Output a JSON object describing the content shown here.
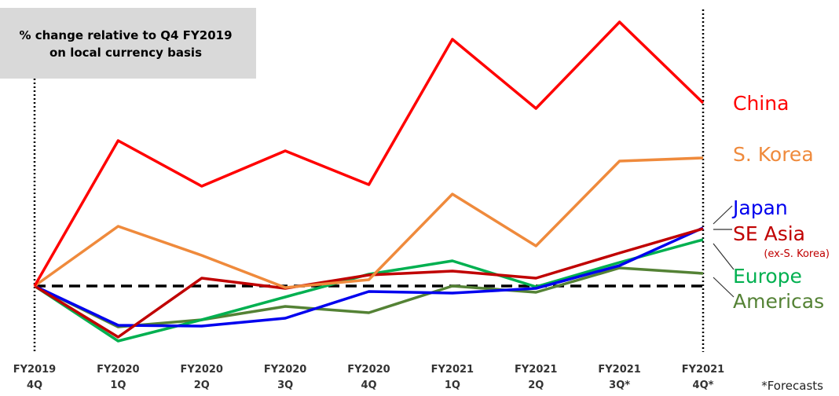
{
  "chart_data": {
    "type": "line",
    "annotation": [
      "% change relative to Q4 FY2019",
      "on local currency basis"
    ],
    "footnote": "*Forecasts",
    "categories": [
      [
        "FY2019",
        "4Q"
      ],
      [
        "FY2020",
        "1Q"
      ],
      [
        "FY2020",
        "2Q"
      ],
      [
        "FY2020",
        "3Q"
      ],
      [
        "FY2020",
        "4Q"
      ],
      [
        "FY2021",
        "1Q"
      ],
      [
        "FY2021",
        "2Q"
      ],
      [
        "FY2021",
        "3Q*"
      ],
      [
        "FY2021",
        "4Q*"
      ]
    ],
    "ylim": [
      -8.6,
      34.4
    ],
    "baseline": 0,
    "series": [
      {
        "name": "China",
        "color": "#ff0000",
        "values": [
          0,
          18.5,
          12.7,
          17.2,
          12.9,
          31.4,
          22.6,
          33.6,
          23.3
        ]
      },
      {
        "name": "S. Korea",
        "color": "#ef8a3c",
        "values": [
          0,
          7.6,
          3.9,
          -0.2,
          0.8,
          11.7,
          5.1,
          15.9,
          16.3
        ]
      },
      {
        "name": "Japan",
        "color": "#0000ee",
        "values": [
          0,
          -5.0,
          -5.1,
          -4.1,
          -0.7,
          -0.9,
          -0.3,
          2.6,
          7.4
        ]
      },
      {
        "name": "SE Asia",
        "sublabel": "(ex-S. Korea)",
        "color": "#c00000",
        "values": [
          0,
          -6.5,
          1.0,
          -0.3,
          1.4,
          1.9,
          1.0,
          4.2,
          7.3
        ]
      },
      {
        "name": "Europe",
        "color": "#00b050",
        "values": [
          0,
          -7.0,
          -4.3,
          -1.4,
          1.5,
          3.2,
          -0.1,
          3.0,
          5.9
        ]
      },
      {
        "name": "Americas",
        "color": "#548235",
        "values": [
          0,
          -5.2,
          -4.3,
          -2.6,
          -3.4,
          0,
          -0.8,
          2.3,
          1.6
        ]
      }
    ]
  }
}
